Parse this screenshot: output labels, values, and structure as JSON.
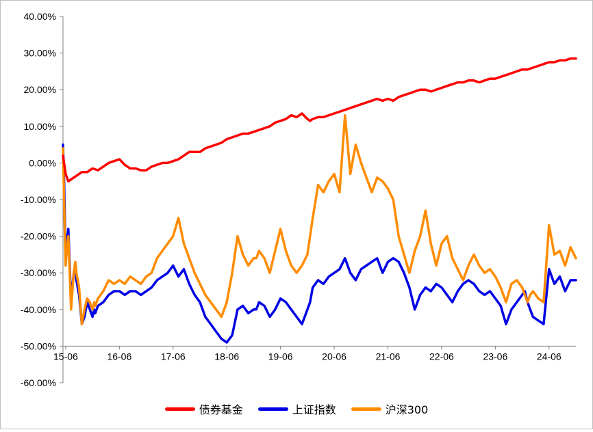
{
  "chart_data": {
    "type": "line",
    "title": "",
    "xlabel": "",
    "ylabel": "",
    "ylim": [
      -60,
      40
    ],
    "y_tick_labels": [
      "40.00%",
      "30.00%",
      "20.00%",
      "10.00%",
      "0.00%",
      "-10.00%",
      "-20.00%",
      "-30.00%",
      "-40.00%",
      "-50.00%",
      "-60.00%"
    ],
    "y_ticks": [
      40,
      30,
      20,
      10,
      0,
      -10,
      -20,
      -30,
      -40,
      -50,
      -60
    ],
    "x_tick_labels": [
      "15-06",
      "16-06",
      "17-06",
      "18-06",
      "19-06",
      "20-06",
      "21-06",
      "22-06",
      "23-06",
      "24-06"
    ],
    "x_ticks": [
      2015.5,
      2016.5,
      2017.5,
      2018.5,
      2019.5,
      2020.5,
      2021.5,
      2022.5,
      2023.5,
      2024.5
    ],
    "xlim": [
      2015.45,
      2025.0
    ],
    "x_axis_at": -50,
    "grid": false,
    "legend_position": "bottom",
    "series": [
      {
        "name": "债券基金",
        "color": "#ff0000",
        "x": [
          2015.45,
          2015.5,
          2015.55,
          2015.6,
          2015.7,
          2015.8,
          2015.9,
          2016.0,
          2016.1,
          2016.2,
          2016.3,
          2016.4,
          2016.5,
          2016.6,
          2016.7,
          2016.8,
          2016.9,
          2017.0,
          2017.1,
          2017.2,
          2017.3,
          2017.4,
          2017.5,
          2017.6,
          2017.7,
          2017.8,
          2017.9,
          2018.0,
          2018.1,
          2018.2,
          2018.3,
          2018.4,
          2018.5,
          2018.6,
          2018.7,
          2018.8,
          2018.9,
          2019.0,
          2019.1,
          2019.2,
          2019.3,
          2019.4,
          2019.5,
          2019.6,
          2019.7,
          2019.8,
          2019.9,
          2020.0,
          2020.05,
          2020.1,
          2020.2,
          2020.3,
          2020.4,
          2020.5,
          2020.6,
          2020.7,
          2020.8,
          2020.9,
          2021.0,
          2021.1,
          2021.2,
          2021.3,
          2021.4,
          2021.5,
          2021.6,
          2021.7,
          2021.8,
          2021.9,
          2022.0,
          2022.1,
          2022.2,
          2022.3,
          2022.4,
          2022.5,
          2022.6,
          2022.7,
          2022.8,
          2022.9,
          2023.0,
          2023.1,
          2023.2,
          2023.3,
          2023.4,
          2023.5,
          2023.6,
          2023.7,
          2023.8,
          2023.9,
          2024.0,
          2024.1,
          2024.2,
          2024.3,
          2024.4,
          2024.5,
          2024.6,
          2024.7,
          2024.8,
          2024.9,
          2025.0
        ],
        "y": [
          2,
          -3,
          -5,
          -4.5,
          -3.5,
          -2.5,
          -2.5,
          -1.5,
          -2,
          -1,
          0,
          0.5,
          1,
          -0.5,
          -1.5,
          -1.5,
          -2,
          -2,
          -1,
          -0.5,
          0,
          0,
          0.5,
          1,
          2,
          3,
          3,
          3,
          4,
          4.5,
          5,
          5.5,
          6.5,
          7,
          7.5,
          8,
          8,
          8.5,
          9,
          9.5,
          10,
          11,
          11.5,
          12,
          13,
          12.5,
          13.5,
          12,
          11.5,
          12,
          12.5,
          12.5,
          13,
          13.5,
          14,
          14.5,
          15,
          15.5,
          16,
          16.5,
          17,
          17.5,
          17,
          17.5,
          17,
          18,
          18.5,
          19,
          19.5,
          20,
          20,
          19.5,
          20,
          20.5,
          21,
          21.5,
          22,
          22,
          22.5,
          22.5,
          22,
          22.5,
          23,
          23,
          23.5,
          24,
          24.5,
          25,
          25.5,
          25.5,
          26,
          26.5,
          27,
          27.5,
          27.5,
          28,
          28,
          28.5,
          28.5
        ]
      },
      {
        "name": "上证指数",
        "color": "#0000e6",
        "x": [
          2015.45,
          2015.47,
          2015.5,
          2015.52,
          2015.55,
          2015.58,
          2015.6,
          2015.62,
          2015.65,
          2015.68,
          2015.7,
          2015.75,
          2015.8,
          2015.85,
          2015.9,
          2015.95,
          2016.0,
          2016.03,
          2016.05,
          2016.1,
          2016.2,
          2016.3,
          2016.4,
          2016.5,
          2016.6,
          2016.7,
          2016.8,
          2016.9,
          2017.0,
          2017.1,
          2017.2,
          2017.3,
          2017.4,
          2017.5,
          2017.6,
          2017.7,
          2017.8,
          2017.9,
          2018.0,
          2018.1,
          2018.2,
          2018.3,
          2018.4,
          2018.5,
          2018.6,
          2018.7,
          2018.8,
          2018.9,
          2019.0,
          2019.05,
          2019.1,
          2019.2,
          2019.3,
          2019.4,
          2019.5,
          2019.6,
          2019.7,
          2019.8,
          2019.9,
          2020.0,
          2020.05,
          2020.1,
          2020.2,
          2020.3,
          2020.4,
          2020.5,
          2020.6,
          2020.7,
          2020.8,
          2020.9,
          2021.0,
          2021.1,
          2021.2,
          2021.3,
          2021.4,
          2021.5,
          2021.6,
          2021.7,
          2021.8,
          2021.9,
          2022.0,
          2022.1,
          2022.2,
          2022.3,
          2022.4,
          2022.5,
          2022.6,
          2022.7,
          2022.8,
          2022.9,
          2023.0,
          2023.1,
          2023.2,
          2023.3,
          2023.4,
          2023.5,
          2023.6,
          2023.7,
          2023.8,
          2023.9,
          2024.0,
          2024.05,
          2024.1,
          2024.15,
          2024.2,
          2024.3,
          2024.4,
          2024.5,
          2024.6,
          2024.7,
          2024.8,
          2024.9,
          2025.0
        ],
        "y": [
          5,
          -5,
          -25,
          -22,
          -18,
          -30,
          -38,
          -35,
          -30,
          -28,
          -32,
          -36,
          -44,
          -42,
          -38,
          -40,
          -42,
          -40,
          -41,
          -39,
          -38,
          -36,
          -35,
          -35,
          -36,
          -35,
          -35,
          -36,
          -35,
          -34,
          -32,
          -31,
          -30,
          -28,
          -31,
          -29,
          -33,
          -36,
          -38,
          -42,
          -44,
          -46,
          -48,
          -49,
          -47,
          -40,
          -39,
          -41,
          -40,
          -40,
          -38,
          -39,
          -42,
          -40,
          -37,
          -38,
          -40,
          -42,
          -44,
          -40,
          -38,
          -34,
          -32,
          -33,
          -31,
          -30,
          -29,
          -26,
          -30,
          -32,
          -29,
          -28,
          -27,
          -26,
          -30,
          -27,
          -26,
          -27,
          -30,
          -34,
          -40,
          -36,
          -34,
          -35,
          -33,
          -34,
          -36,
          -38,
          -35,
          -33,
          -32,
          -33,
          -35,
          -36,
          -35,
          -37,
          -39,
          -44,
          -40,
          -38,
          -36,
          -35,
          -38,
          -40,
          -42,
          -43,
          -44,
          -29,
          -33,
          -31,
          -35,
          -32,
          -32
        ]
      },
      {
        "name": "沪深300",
        "color": "#ff8c00",
        "x": [
          2015.45,
          2015.47,
          2015.5,
          2015.52,
          2015.55,
          2015.58,
          2015.6,
          2015.62,
          2015.65,
          2015.68,
          2015.7,
          2015.75,
          2015.8,
          2015.85,
          2015.9,
          2015.95,
          2016.0,
          2016.03,
          2016.05,
          2016.1,
          2016.2,
          2016.3,
          2016.4,
          2016.5,
          2016.6,
          2016.7,
          2016.8,
          2016.9,
          2017.0,
          2017.1,
          2017.2,
          2017.3,
          2017.4,
          2017.5,
          2017.6,
          2017.7,
          2017.8,
          2017.9,
          2018.0,
          2018.1,
          2018.2,
          2018.3,
          2018.4,
          2018.5,
          2018.6,
          2018.7,
          2018.8,
          2018.9,
          2019.0,
          2019.05,
          2019.1,
          2019.2,
          2019.3,
          2019.4,
          2019.5,
          2019.6,
          2019.7,
          2019.8,
          2019.9,
          2020.0,
          2020.05,
          2020.1,
          2020.2,
          2020.3,
          2020.4,
          2020.5,
          2020.6,
          2020.7,
          2020.8,
          2020.9,
          2021.0,
          2021.1,
          2021.2,
          2021.3,
          2021.4,
          2021.5,
          2021.6,
          2021.7,
          2021.8,
          2021.9,
          2022.0,
          2022.1,
          2022.2,
          2022.3,
          2022.4,
          2022.5,
          2022.6,
          2022.7,
          2022.8,
          2022.9,
          2023.0,
          2023.1,
          2023.2,
          2023.3,
          2023.4,
          2023.5,
          2023.6,
          2023.7,
          2023.8,
          2023.9,
          2024.0,
          2024.05,
          2024.1,
          2024.15,
          2024.2,
          2024.3,
          2024.4,
          2024.5,
          2024.6,
          2024.7,
          2024.8,
          2024.9,
          2025.0
        ],
        "y": [
          4,
          -10,
          -28,
          -24,
          -20,
          -32,
          -40,
          -36,
          -30,
          -27,
          -30,
          -34,
          -44,
          -40,
          -37,
          -38,
          -40,
          -38,
          -39,
          -37,
          -35,
          -32,
          -33,
          -32,
          -33,
          -31,
          -32,
          -33,
          -31,
          -30,
          -26,
          -24,
          -22,
          -20,
          -15,
          -22,
          -26,
          -30,
          -33,
          -36,
          -38,
          -40,
          -42,
          -38,
          -30,
          -20,
          -25,
          -28,
          -26,
          -26,
          -24,
          -26,
          -30,
          -24,
          -18,
          -24,
          -28,
          -30,
          -28,
          -25,
          -20,
          -15,
          -6,
          -8,
          -5,
          -3,
          -8,
          13,
          -3,
          5,
          0,
          -4,
          -8,
          -4,
          -5,
          -7,
          -10,
          -20,
          -25,
          -30,
          -24,
          -20,
          -13,
          -22,
          -28,
          -22,
          -20,
          -26,
          -29,
          -32,
          -28,
          -25,
          -28,
          -30,
          -29,
          -31,
          -34,
          -38,
          -33,
          -32,
          -34,
          -36,
          -38,
          -36,
          -35,
          -37,
          -38,
          -17,
          -25,
          -24,
          -28,
          -23,
          -26
        ]
      }
    ]
  }
}
